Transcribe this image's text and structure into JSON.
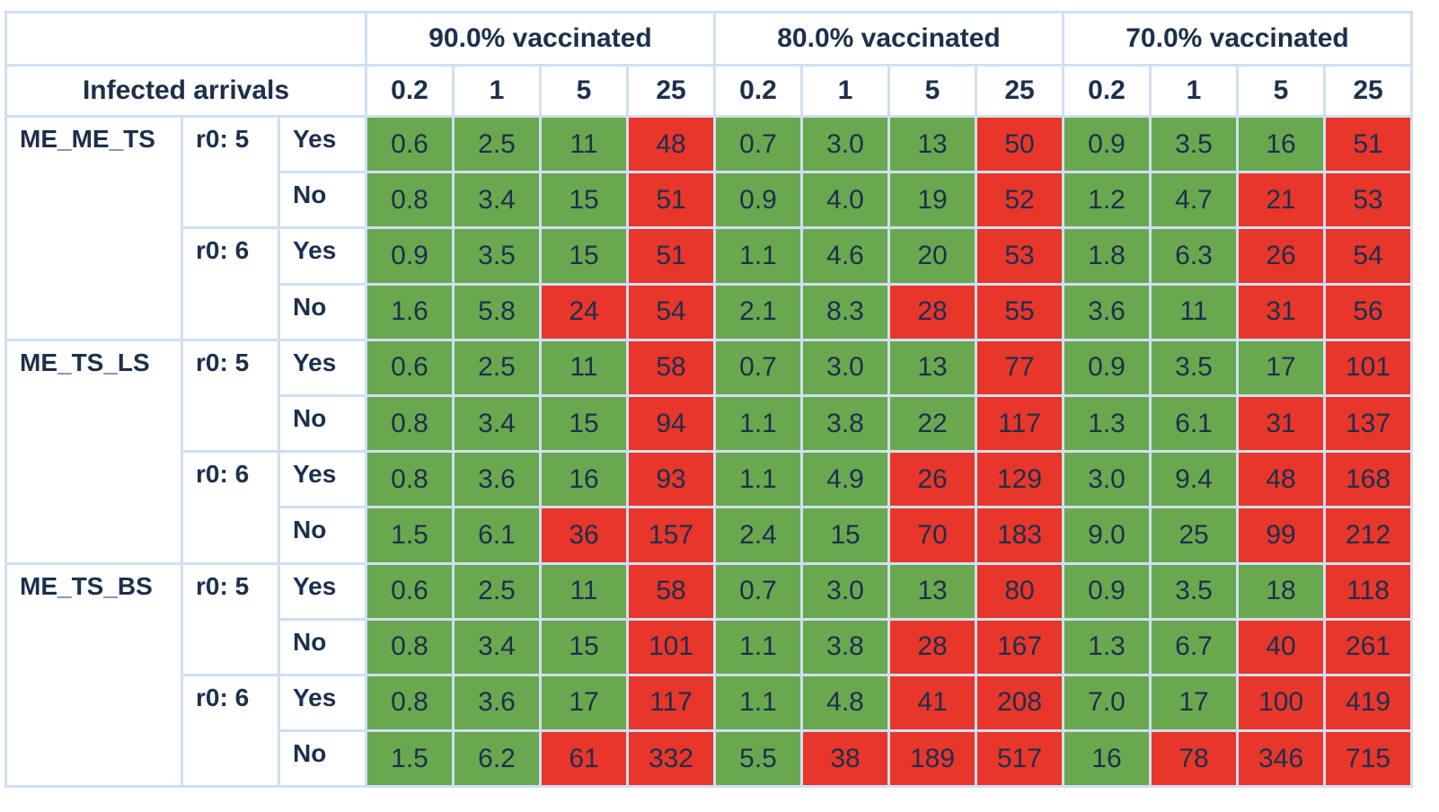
{
  "chart_data": {
    "type": "table",
    "row_header_label": "Infected arrivals",
    "vaccination_groups": [
      "90.0% vaccinated",
      "80.0% vaccinated",
      "70.0% vaccinated"
    ],
    "arrival_levels": [
      "0.2",
      "1",
      "5",
      "25"
    ],
    "colors": {
      "low": "#6aa84f",
      "high": "#e8362b",
      "grid": "#cfe0f3",
      "text": "#1c2f4d"
    },
    "row_groups": [
      {
        "model": "ME_ME_TS",
        "subgroups": [
          {
            "r0": "r0: 5",
            "rows": [
              {
                "label": "Yes",
                "cells": [
                  {
                    "v": "0.6",
                    "c": "low"
                  },
                  {
                    "v": "2.5",
                    "c": "low"
                  },
                  {
                    "v": "11",
                    "c": "low"
                  },
                  {
                    "v": "48",
                    "c": "high"
                  },
                  {
                    "v": "0.7",
                    "c": "low"
                  },
                  {
                    "v": "3.0",
                    "c": "low"
                  },
                  {
                    "v": "13",
                    "c": "low"
                  },
                  {
                    "v": "50",
                    "c": "high"
                  },
                  {
                    "v": "0.9",
                    "c": "low"
                  },
                  {
                    "v": "3.5",
                    "c": "low"
                  },
                  {
                    "v": "16",
                    "c": "low"
                  },
                  {
                    "v": "51",
                    "c": "high"
                  }
                ]
              },
              {
                "label": "No",
                "cells": [
                  {
                    "v": "0.8",
                    "c": "low"
                  },
                  {
                    "v": "3.4",
                    "c": "low"
                  },
                  {
                    "v": "15",
                    "c": "low"
                  },
                  {
                    "v": "51",
                    "c": "high"
                  },
                  {
                    "v": "0.9",
                    "c": "low"
                  },
                  {
                    "v": "4.0",
                    "c": "low"
                  },
                  {
                    "v": "19",
                    "c": "low"
                  },
                  {
                    "v": "52",
                    "c": "high"
                  },
                  {
                    "v": "1.2",
                    "c": "low"
                  },
                  {
                    "v": "4.7",
                    "c": "low"
                  },
                  {
                    "v": "21",
                    "c": "high"
                  },
                  {
                    "v": "53",
                    "c": "high"
                  }
                ]
              }
            ]
          },
          {
            "r0": "r0: 6",
            "rows": [
              {
                "label": "Yes",
                "cells": [
                  {
                    "v": "0.9",
                    "c": "low"
                  },
                  {
                    "v": "3.5",
                    "c": "low"
                  },
                  {
                    "v": "15",
                    "c": "low"
                  },
                  {
                    "v": "51",
                    "c": "high"
                  },
                  {
                    "v": "1.1",
                    "c": "low"
                  },
                  {
                    "v": "4.6",
                    "c": "low"
                  },
                  {
                    "v": "20",
                    "c": "low"
                  },
                  {
                    "v": "53",
                    "c": "high"
                  },
                  {
                    "v": "1.8",
                    "c": "low"
                  },
                  {
                    "v": "6.3",
                    "c": "low"
                  },
                  {
                    "v": "26",
                    "c": "high"
                  },
                  {
                    "v": "54",
                    "c": "high"
                  }
                ]
              },
              {
                "label": "No",
                "cells": [
                  {
                    "v": "1.6",
                    "c": "low"
                  },
                  {
                    "v": "5.8",
                    "c": "low"
                  },
                  {
                    "v": "24",
                    "c": "high"
                  },
                  {
                    "v": "54",
                    "c": "high"
                  },
                  {
                    "v": "2.1",
                    "c": "low"
                  },
                  {
                    "v": "8.3",
                    "c": "low"
                  },
                  {
                    "v": "28",
                    "c": "high"
                  },
                  {
                    "v": "55",
                    "c": "high"
                  },
                  {
                    "v": "3.6",
                    "c": "low"
                  },
                  {
                    "v": "11",
                    "c": "low"
                  },
                  {
                    "v": "31",
                    "c": "high"
                  },
                  {
                    "v": "56",
                    "c": "high"
                  }
                ]
              }
            ]
          }
        ]
      },
      {
        "model": "ME_TS_LS",
        "subgroups": [
          {
            "r0": "r0: 5",
            "rows": [
              {
                "label": "Yes",
                "cells": [
                  {
                    "v": "0.6",
                    "c": "low"
                  },
                  {
                    "v": "2.5",
                    "c": "low"
                  },
                  {
                    "v": "11",
                    "c": "low"
                  },
                  {
                    "v": "58",
                    "c": "high"
                  },
                  {
                    "v": "0.7",
                    "c": "low"
                  },
                  {
                    "v": "3.0",
                    "c": "low"
                  },
                  {
                    "v": "13",
                    "c": "low"
                  },
                  {
                    "v": "77",
                    "c": "high"
                  },
                  {
                    "v": "0.9",
                    "c": "low"
                  },
                  {
                    "v": "3.5",
                    "c": "low"
                  },
                  {
                    "v": "17",
                    "c": "low"
                  },
                  {
                    "v": "101",
                    "c": "high"
                  }
                ]
              },
              {
                "label": "No",
                "cells": [
                  {
                    "v": "0.8",
                    "c": "low"
                  },
                  {
                    "v": "3.4",
                    "c": "low"
                  },
                  {
                    "v": "15",
                    "c": "low"
                  },
                  {
                    "v": "94",
                    "c": "high"
                  },
                  {
                    "v": "1.1",
                    "c": "low"
                  },
                  {
                    "v": "3.8",
                    "c": "low"
                  },
                  {
                    "v": "22",
                    "c": "low"
                  },
                  {
                    "v": "117",
                    "c": "high"
                  },
                  {
                    "v": "1.3",
                    "c": "low"
                  },
                  {
                    "v": "6.1",
                    "c": "low"
                  },
                  {
                    "v": "31",
                    "c": "high"
                  },
                  {
                    "v": "137",
                    "c": "high"
                  }
                ]
              }
            ]
          },
          {
            "r0": "r0: 6",
            "rows": [
              {
                "label": "Yes",
                "cells": [
                  {
                    "v": "0.8",
                    "c": "low"
                  },
                  {
                    "v": "3.6",
                    "c": "low"
                  },
                  {
                    "v": "16",
                    "c": "low"
                  },
                  {
                    "v": "93",
                    "c": "high"
                  },
                  {
                    "v": "1.1",
                    "c": "low"
                  },
                  {
                    "v": "4.9",
                    "c": "low"
                  },
                  {
                    "v": "26",
                    "c": "high"
                  },
                  {
                    "v": "129",
                    "c": "high"
                  },
                  {
                    "v": "3.0",
                    "c": "low"
                  },
                  {
                    "v": "9.4",
                    "c": "low"
                  },
                  {
                    "v": "48",
                    "c": "high"
                  },
                  {
                    "v": "168",
                    "c": "high"
                  }
                ]
              },
              {
                "label": "No",
                "cells": [
                  {
                    "v": "1.5",
                    "c": "low"
                  },
                  {
                    "v": "6.1",
                    "c": "low"
                  },
                  {
                    "v": "36",
                    "c": "high"
                  },
                  {
                    "v": "157",
                    "c": "high"
                  },
                  {
                    "v": "2.4",
                    "c": "low"
                  },
                  {
                    "v": "15",
                    "c": "low"
                  },
                  {
                    "v": "70",
                    "c": "high"
                  },
                  {
                    "v": "183",
                    "c": "high"
                  },
                  {
                    "v": "9.0",
                    "c": "low"
                  },
                  {
                    "v": "25",
                    "c": "low"
                  },
                  {
                    "v": "99",
                    "c": "high"
                  },
                  {
                    "v": "212",
                    "c": "high"
                  }
                ]
              }
            ]
          }
        ]
      },
      {
        "model": "ME_TS_BS",
        "subgroups": [
          {
            "r0": "r0: 5",
            "rows": [
              {
                "label": "Yes",
                "cells": [
                  {
                    "v": "0.6",
                    "c": "low"
                  },
                  {
                    "v": "2.5",
                    "c": "low"
                  },
                  {
                    "v": "11",
                    "c": "low"
                  },
                  {
                    "v": "58",
                    "c": "high"
                  },
                  {
                    "v": "0.7",
                    "c": "low"
                  },
                  {
                    "v": "3.0",
                    "c": "low"
                  },
                  {
                    "v": "13",
                    "c": "low"
                  },
                  {
                    "v": "80",
                    "c": "high"
                  },
                  {
                    "v": "0.9",
                    "c": "low"
                  },
                  {
                    "v": "3.5",
                    "c": "low"
                  },
                  {
                    "v": "18",
                    "c": "low"
                  },
                  {
                    "v": "118",
                    "c": "high"
                  }
                ]
              },
              {
                "label": "No",
                "cells": [
                  {
                    "v": "0.8",
                    "c": "low"
                  },
                  {
                    "v": "3.4",
                    "c": "low"
                  },
                  {
                    "v": "15",
                    "c": "low"
                  },
                  {
                    "v": "101",
                    "c": "high"
                  },
                  {
                    "v": "1.1",
                    "c": "low"
                  },
                  {
                    "v": "3.8",
                    "c": "low"
                  },
                  {
                    "v": "28",
                    "c": "high"
                  },
                  {
                    "v": "167",
                    "c": "high"
                  },
                  {
                    "v": "1.3",
                    "c": "low"
                  },
                  {
                    "v": "6.7",
                    "c": "low"
                  },
                  {
                    "v": "40",
                    "c": "high"
                  },
                  {
                    "v": "261",
                    "c": "high"
                  }
                ]
              }
            ]
          },
          {
            "r0": "r0: 6",
            "rows": [
              {
                "label": "Yes",
                "cells": [
                  {
                    "v": "0.8",
                    "c": "low"
                  },
                  {
                    "v": "3.6",
                    "c": "low"
                  },
                  {
                    "v": "17",
                    "c": "low"
                  },
                  {
                    "v": "117",
                    "c": "high"
                  },
                  {
                    "v": "1.1",
                    "c": "low"
                  },
                  {
                    "v": "4.8",
                    "c": "low"
                  },
                  {
                    "v": "41",
                    "c": "high"
                  },
                  {
                    "v": "208",
                    "c": "high"
                  },
                  {
                    "v": "7.0",
                    "c": "low"
                  },
                  {
                    "v": "17",
                    "c": "low"
                  },
                  {
                    "v": "100",
                    "c": "high"
                  },
                  {
                    "v": "419",
                    "c": "high"
                  }
                ]
              },
              {
                "label": "No",
                "cells": [
                  {
                    "v": "1.5",
                    "c": "low"
                  },
                  {
                    "v": "6.2",
                    "c": "low"
                  },
                  {
                    "v": "61",
                    "c": "high"
                  },
                  {
                    "v": "332",
                    "c": "high"
                  },
                  {
                    "v": "5.5",
                    "c": "low"
                  },
                  {
                    "v": "38",
                    "c": "high"
                  },
                  {
                    "v": "189",
                    "c": "high"
                  },
                  {
                    "v": "517",
                    "c": "high"
                  },
                  {
                    "v": "16",
                    "c": "low"
                  },
                  {
                    "v": "78",
                    "c": "high"
                  },
                  {
                    "v": "346",
                    "c": "high"
                  },
                  {
                    "v": "715",
                    "c": "high"
                  }
                ]
              }
            ]
          }
        ]
      }
    ]
  }
}
